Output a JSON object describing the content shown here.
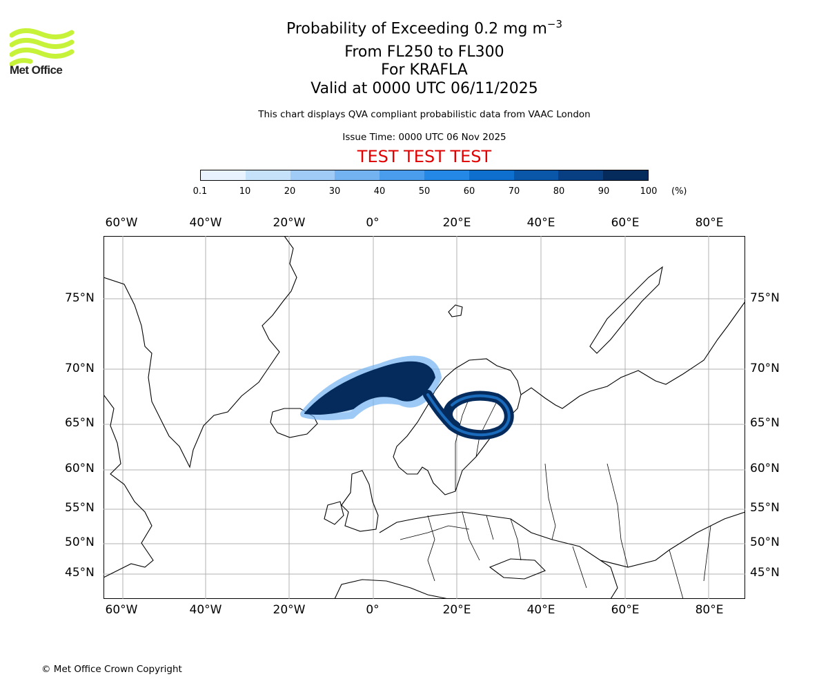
{
  "logo": {
    "text": "Met Office",
    "color": "#c6f23a"
  },
  "titles": {
    "line1": "Probability of Exceeding 0.2 mg m",
    "line1_sup": "−3",
    "line2": "From FL250 to FL300",
    "line3": "For KRAFLA",
    "line4": "Valid at 0000 UTC 06/11/2025"
  },
  "subtitle": "This chart displays QVA compliant probabilistic data from VAAC London",
  "issue_time": "Issue Time: 0000 UTC 06 Nov 2025",
  "test_banner": {
    "text": "TEST TEST TEST",
    "color": "#e00000"
  },
  "colorbar": {
    "ticks": [
      "0.1",
      "10",
      "20",
      "30",
      "40",
      "50",
      "60",
      "70",
      "80",
      "90",
      "100"
    ],
    "unit": "(%)",
    "colors": [
      "#e8f3ff",
      "#c6e2fb",
      "#9fcbf6",
      "#73b3f1",
      "#4a9cec",
      "#2488e6",
      "#0f6fce",
      "#0a56a8",
      "#073f82",
      "#052b5c"
    ]
  },
  "map": {
    "lon_labels": [
      "60°W",
      "40°W",
      "20°W",
      "0°",
      "20°E",
      "40°E",
      "60°E",
      "80°E"
    ],
    "lat_labels": [
      "75°N",
      "70°N",
      "65°N",
      "60°N",
      "55°N",
      "50°N",
      "45°N"
    ],
    "plume_color": "#052b5c",
    "plume_edge_color": "#2488e6",
    "source": "KRAFLA"
  },
  "copyright": "© Met Office Crown Copyright"
}
